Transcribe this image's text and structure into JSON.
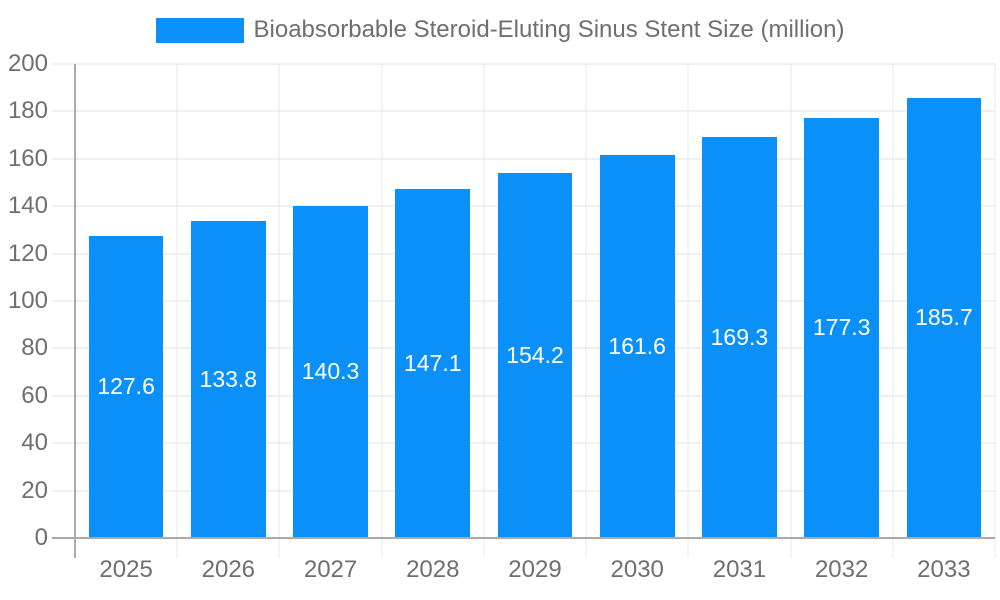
{
  "chart_data": {
    "type": "bar",
    "title": "Bioabsorbable Steroid-Eluting Sinus Stent Size (million)",
    "categories": [
      "2025",
      "2026",
      "2027",
      "2028",
      "2029",
      "2030",
      "2031",
      "2032",
      "2033"
    ],
    "values": [
      127.6,
      133.8,
      140.3,
      147.1,
      154.2,
      161.6,
      169.3,
      177.3,
      185.7
    ],
    "series": [
      {
        "name": "Bioabsorbable Steroid-Eluting Sinus Stent Size (million)",
        "values": [
          127.6,
          133.8,
          140.3,
          147.1,
          154.2,
          161.6,
          169.3,
          177.3,
          185.7
        ]
      }
    ],
    "xlabel": "",
    "ylabel": "",
    "ylim": [
      0,
      200
    ],
    "yticks": [
      0,
      20,
      40,
      60,
      80,
      100,
      120,
      140,
      160,
      180,
      200
    ],
    "grid": "on",
    "legend_position": "top",
    "value_labels": "inside-center",
    "colors": {
      "bar": "#0a90f8",
      "value_label_text": "#ffffff",
      "axis_text": "#6f6f6f",
      "grid_line": "#e0e0e0",
      "vertical_grid_line": "#e9e9e9",
      "axis_line": "#aaaaaa",
      "background": "#ffffff"
    }
  }
}
